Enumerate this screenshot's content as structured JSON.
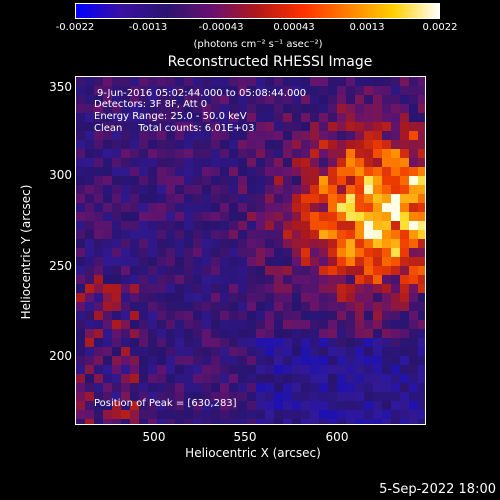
{
  "colorbar": {
    "ticks": [
      "-0.0022",
      "-0.0013",
      "-0.00043",
      "0.00043",
      "0.0013",
      "0.0022"
    ],
    "unit": "(photons cm⁻² s⁻¹ asec⁻²)",
    "colors": [
      "#0000ff",
      "#3a10a0",
      "#2a1470",
      "#6a1070",
      "#b01818",
      "#ff3000",
      "#ff8000",
      "#ffd000",
      "#ffffff"
    ]
  },
  "title": "Reconstructed RHESSI Image",
  "info": {
    "time_range": "9-Jun-2016 05:02:44.000 to 05:08:44.000",
    "detectors": "Detectors: 3F 8F, Att 0",
    "energy": "Energy Range: 25.0 - 50.0 keV",
    "clean": "Clean     Total counts: 6.01E+03",
    "peak": "Position of Peak = [630,283]"
  },
  "axes": {
    "xlabel": "Heliocentric X (arcsec)",
    "ylabel": "Heliocentric Y (arcsec)",
    "xticks": [
      "500",
      "550",
      "600"
    ],
    "yticks": [
      "350",
      "300",
      "250",
      "200"
    ],
    "xlim": [
      460,
      650
    ],
    "ylim": [
      160,
      360
    ]
  },
  "timestamp": "5-Sep-2022 18:00",
  "image": {
    "peak_x": 630,
    "peak_y": 283
  }
}
